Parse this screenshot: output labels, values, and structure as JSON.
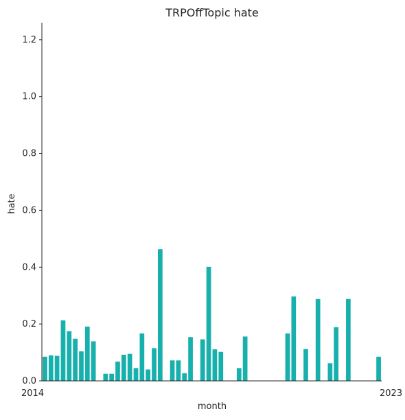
{
  "chart_data": {
    "type": "bar",
    "title": "TRPOffTopic hate",
    "xlabel": "month",
    "ylabel": "hate",
    "ylim": [
      0,
      1.26
    ],
    "yticks": [
      "0.0",
      "0.2",
      "0.4",
      "0.6",
      "0.8",
      "1.0",
      "1.2"
    ],
    "ytick_values": [
      0,
      0.2,
      0.4,
      0.6,
      0.8,
      1.0,
      1.2
    ],
    "visible_x_text_left": "2014",
    "visible_x_text_right": "2023",
    "grid": false,
    "bar_color": "#17b0ad",
    "categories": [
      "2014-01",
      "2014-02",
      "2014-03",
      "2014-04",
      "2014-05",
      "2014-06",
      "2014-07",
      "2014-08",
      "2014-09",
      "2014-10",
      "2014-11",
      "2014-12",
      "2015-01",
      "2015-02",
      "2015-03",
      "2015-04",
      "2015-05",
      "2015-06",
      "2015-07",
      "2015-08",
      "2015-09",
      "2015-10",
      "2015-11",
      "2015-12",
      "2016-01",
      "2016-02",
      "2016-03",
      "2016-04",
      "2016-05",
      "2016-06",
      "2016-07",
      "2016-08",
      "2016-09",
      "2016-10",
      "2016-11",
      "2016-12",
      "2017-01",
      "2017-02",
      "2017-03",
      "2017-04",
      "2017-05",
      "2017-06",
      "2017-07",
      "2017-08",
      "2017-09",
      "2017-10",
      "2017-11",
      "2017-12",
      "2018-01",
      "2018-02",
      "2018-03",
      "2018-04",
      "2018-05",
      "2018-06",
      "2018-07",
      "2023-01"
    ],
    "values": [
      0.085,
      0.09,
      0.088,
      0.213,
      0.175,
      0.148,
      0.104,
      0.191,
      0.139,
      0,
      0.025,
      0.025,
      0.068,
      0.092,
      0.095,
      0.045,
      0.167,
      0.04,
      0.115,
      0.463,
      0,
      0.072,
      0.072,
      0.027,
      0.154,
      0,
      0.146,
      0.401,
      0.111,
      0.102,
      0,
      0,
      0.045,
      0.156,
      0,
      0,
      0,
      0,
      0,
      0,
      0.167,
      0.297,
      0,
      0.112,
      0,
      0.288,
      0,
      0.062,
      0.189,
      0,
      0.288,
      0,
      0,
      0,
      0,
      0.085
    ]
  }
}
